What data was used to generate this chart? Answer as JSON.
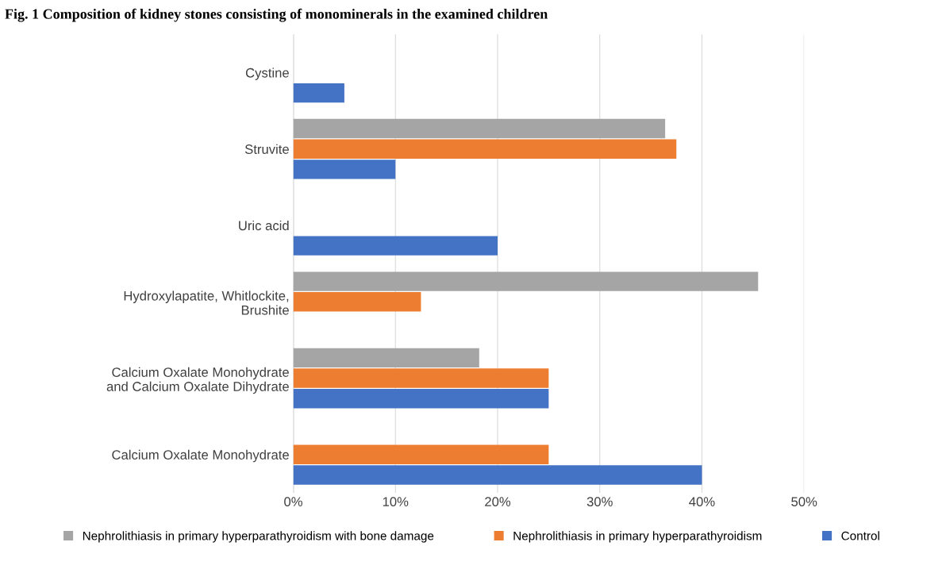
{
  "chart_data": {
    "type": "bar",
    "orientation": "horizontal",
    "title": "Fig. 1 Composition of kidney stones consisting of monominerals in the examined children",
    "categories": [
      "Cystine",
      "Struvite",
      "Uric acid",
      "Hydroxylapatite, Whitlockite,\nBrushite",
      "Calcium Oxalate Monohydrate\nand Calcium Oxalate Dihydrate",
      "Calcium Oxalate Monohydrate"
    ],
    "series": [
      {
        "name": "Nephrolithiasis in primary hyperparathyroidism with bone damage",
        "color": "#a5a5a5",
        "values": [
          0,
          36.4,
          0,
          45.5,
          18.2,
          0
        ]
      },
      {
        "name": "Nephrolithiasis in primary hyperparathyroidism",
        "color": "#ed7d31",
        "values": [
          0,
          37.5,
          0,
          12.5,
          25,
          25
        ]
      },
      {
        "name": "Control",
        "color": "#4472c4",
        "values": [
          5,
          10,
          20,
          0,
          25,
          40
        ]
      }
    ],
    "xlim": [
      0,
      50
    ],
    "xticks": [
      {
        "value": 0,
        "label": "0%"
      },
      {
        "value": 10,
        "label": "10%"
      },
      {
        "value": 20,
        "label": "20%"
      },
      {
        "value": 30,
        "label": "30%"
      },
      {
        "value": 40,
        "label": "40%"
      },
      {
        "value": 50,
        "label": "50%"
      }
    ],
    "grid": "x",
    "legend": "bottom"
  }
}
